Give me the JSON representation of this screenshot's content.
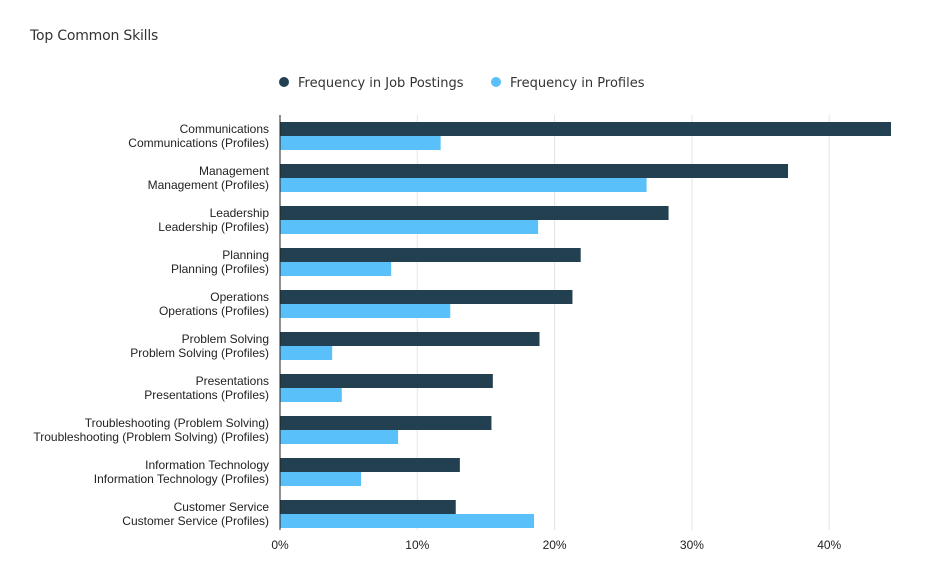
{
  "chart_data": {
    "type": "bar",
    "orientation": "horizontal",
    "title": "Top Common Skills",
    "legend_position": "top",
    "categories": [
      "Communications",
      "Management",
      "Leadership",
      "Planning",
      "Operations",
      "Problem Solving",
      "Presentations",
      "Troubleshooting (Problem Solving)",
      "Information Technology",
      "Customer Service"
    ],
    "series_labels": [
      [
        "Communications",
        "Communications (Profiles)"
      ],
      [
        "Management",
        "Management (Profiles)"
      ],
      [
        "Leadership",
        "Leadership (Profiles)"
      ],
      [
        "Planning",
        "Planning (Profiles)"
      ],
      [
        "Operations",
        "Operations (Profiles)"
      ],
      [
        "Problem Solving",
        "Problem Solving (Profiles)"
      ],
      [
        "Presentations",
        "Presentations (Profiles)"
      ],
      [
        "Troubleshooting (Problem Solving)",
        "Troubleshooting (Problem Solving) (Profiles)"
      ],
      [
        "Information Technology",
        "Information Technology (Profiles)"
      ],
      [
        "Customer Service",
        "Customer Service (Profiles)"
      ]
    ],
    "series": [
      {
        "name": "Frequency in Job Postings",
        "color": "#22404f",
        "values": [
          44.5,
          37.0,
          28.3,
          21.9,
          21.3,
          18.9,
          15.5,
          15.4,
          13.1,
          12.8
        ]
      },
      {
        "name": "Frequency in Profiles",
        "color": "#5ac0fa",
        "values": [
          11.7,
          26.7,
          18.8,
          8.1,
          12.4,
          3.8,
          4.5,
          8.6,
          5.9,
          18.5
        ]
      }
    ],
    "x_ticks": [
      "0%",
      "10%",
      "20%",
      "30%",
      "40%"
    ],
    "x_tick_values": [
      0,
      10,
      20,
      30,
      40
    ],
    "xlim": [
      0,
      44.5
    ],
    "xlabel": "",
    "ylabel": "",
    "grid": true
  }
}
